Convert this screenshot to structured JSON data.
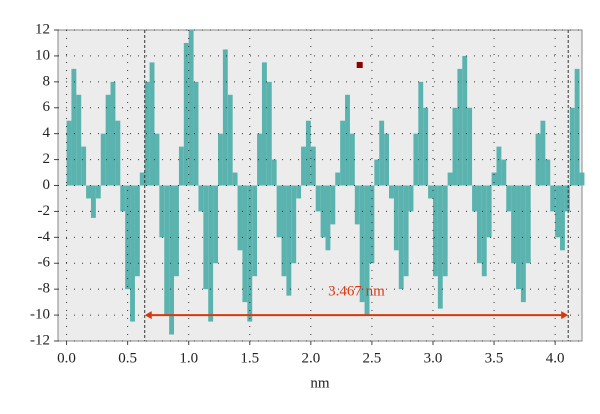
{
  "chart_data": {
    "type": "bar",
    "xlabel": "nm",
    "color": "#5ab3ae",
    "grid": true,
    "xlim": [
      -0.07,
      4.22
    ],
    "ylim": [
      -12,
      12
    ],
    "xticks": [
      {
        "value": 0,
        "label": "0.0"
      },
      {
        "value": 0.5,
        "label": "0.5"
      },
      {
        "value": 1,
        "label": "1.0"
      },
      {
        "value": 1.5,
        "label": "1.5"
      },
      {
        "value": 2,
        "label": "2.0"
      },
      {
        "value": 2.5,
        "label": "2.5"
      },
      {
        "value": 3,
        "label": "3.0"
      },
      {
        "value": 3.5,
        "label": "3.5"
      },
      {
        "value": 4,
        "label": "4.0"
      }
    ],
    "yticks": [
      -12,
      -10,
      -8,
      -6,
      -4,
      -2,
      0,
      2,
      4,
      6,
      8,
      10,
      12
    ],
    "x": [
      0,
      0.04,
      0.08,
      0.12,
      0.16,
      0.2,
      0.24,
      0.28,
      0.32,
      0.36,
      0.4,
      0.44,
      0.48,
      0.52,
      0.56,
      0.6,
      0.64,
      0.68,
      0.72,
      0.76,
      0.8,
      0.84,
      0.88,
      0.92,
      0.96,
      1,
      1.04,
      1.08,
      1.12,
      1.16,
      1.2,
      1.24,
      1.28,
      1.32,
      1.36,
      1.4,
      1.44,
      1.48,
      1.52,
      1.56,
      1.6,
      1.64,
      1.68,
      1.72,
      1.76,
      1.8,
      1.84,
      1.88,
      1.92,
      1.96,
      2,
      2.04,
      2.08,
      2.12,
      2.16,
      2.2,
      2.24,
      2.28,
      2.32,
      2.36,
      2.4,
      2.44,
      2.48,
      2.52,
      2.56,
      2.6,
      2.64,
      2.68,
      2.72,
      2.76,
      2.8,
      2.84,
      2.88,
      2.92,
      2.96,
      3,
      3.04,
      3.08,
      3.12,
      3.16,
      3.2,
      3.24,
      3.28,
      3.32,
      3.36,
      3.4,
      3.44,
      3.48,
      3.52,
      3.56,
      3.6,
      3.64,
      3.68,
      3.72,
      3.76,
      3.8,
      3.84,
      3.88,
      3.92,
      3.96,
      4,
      4.04,
      4.08,
      4.12,
      4.16,
      4.2
    ],
    "values": [
      5,
      9,
      7,
      3,
      -1,
      -2.5,
      -1,
      4,
      7,
      8,
      5,
      -2,
      -8,
      -10.5,
      -7,
      1,
      8,
      9.5,
      4,
      -4,
      -10,
      -11.5,
      -7,
      3,
      11,
      12,
      8,
      -2,
      -8,
      -10.5,
      -6,
      4,
      10.5,
      7,
      1,
      -5,
      -9,
      -10.5,
      -7,
      4,
      9.5,
      8,
      2,
      -4,
      -7,
      -8.5,
      -6,
      -1,
      3,
      5,
      3,
      -2,
      -4,
      -5,
      -3,
      1,
      5,
      7,
      4,
      -3,
      -9,
      -10,
      -6,
      2,
      5,
      4,
      -1,
      -5,
      -8,
      -7,
      -2,
      4,
      8,
      6,
      -1,
      -7,
      -9.5,
      -7,
      1,
      6,
      9,
      10,
      6,
      -2,
      -6,
      -7,
      -4,
      1,
      3,
      2,
      -2,
      -6,
      -8,
      -9,
      -6,
      0,
      4,
      5,
      2,
      -2,
      -4,
      -5,
      -2,
      6,
      9,
      1
    ],
    "annotation": {
      "text": "3.467 nm",
      "x_start": 0.64,
      "x_end": 4.107,
      "y": -10
    },
    "marker": {
      "x": 2.4,
      "y": 9.3,
      "color": "#8b0000"
    },
    "arrow_color": "#d9380f"
  }
}
